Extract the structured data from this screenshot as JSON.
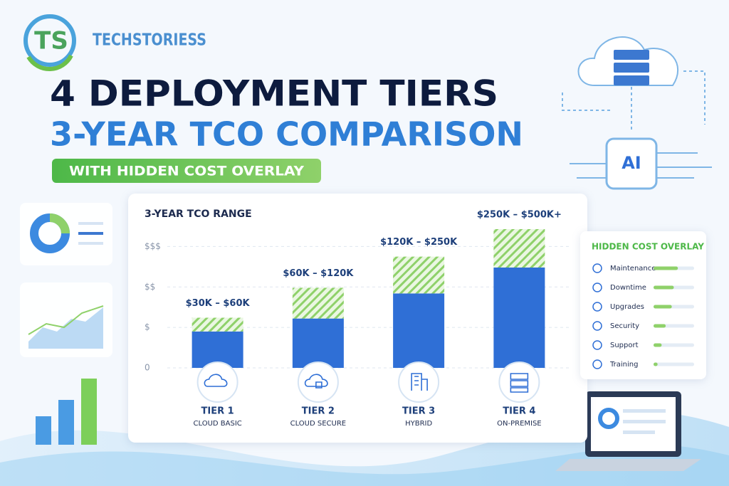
{
  "header": {
    "logo": "TS",
    "brand": "TECHSTORIESS",
    "title_line1": "4 DEPLOYMENT TIERS",
    "title_line2": "3-YEAR TCO COMPARISON",
    "badge": "WITH HIDDEN COST OVERLAY"
  },
  "decor": {
    "ai_label": "AI"
  },
  "chart_data": {
    "type": "bar",
    "stacked": true,
    "title": "3-YEAR TCO RANGE",
    "categories": [
      "TIER 1",
      "TIER 2",
      "TIER 3",
      "TIER 4"
    ],
    "category_subtitles": [
      "CLOUD BASIC",
      "CLOUD SECURE",
      "HYBRID",
      "ON-PREMISE"
    ],
    "range_labels": [
      "$30K – $60K",
      "$60K – $120K",
      "$120K – $250K",
      "$250K – $500K+"
    ],
    "series": [
      {
        "color": "#2f6fd6",
        "values": [
          0.9,
          1.22,
          1.84,
          2.48
        ]
      },
      {
        "color": "#8fd16a",
        "pattern": "hatch",
        "values": [
          0.34,
          0.76,
          0.91,
          0.95
        ]
      }
    ],
    "ylim": [
      0,
      3.5
    ],
    "yticks": [
      {
        "value": 0,
        "label": "0"
      },
      {
        "value": 1,
        "label": "$"
      },
      {
        "value": 2,
        "label": "$$"
      },
      {
        "value": 3,
        "label": "$$$"
      }
    ],
    "grid": true
  },
  "hidden_costs": {
    "title": "HIDDEN COST OVERLAY",
    "color": "#8fd16a",
    "items": [
      {
        "label": "Maintenance",
        "value": 60
      },
      {
        "label": "Downtime",
        "value": 50
      },
      {
        "label": "Upgrades",
        "value": 45
      },
      {
        "label": "Security",
        "value": 30
      },
      {
        "label": "Support",
        "value": 20
      },
      {
        "label": "Training",
        "value": 10
      }
    ],
    "scale": [
      0,
      100
    ]
  }
}
